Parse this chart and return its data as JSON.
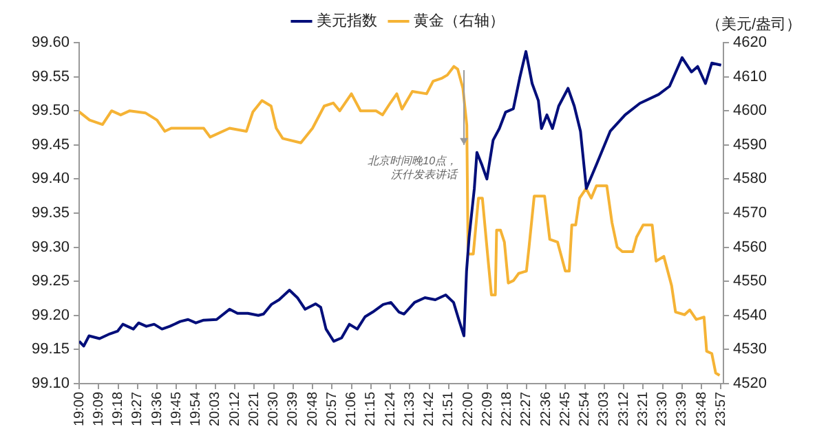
{
  "chart_data": {
    "type": "line",
    "y2label": "（美元/盎司）",
    "legend": "top",
    "grid": false,
    "marker": "none",
    "line_style": "solid",
    "xlim": [
      19,
      23.97
    ],
    "xticks": [
      {
        "value": 19,
        "label": "19:00"
      },
      {
        "value": 19.15,
        "label": "19:09"
      },
      {
        "value": 19.3,
        "label": "19:18"
      },
      {
        "value": 19.45,
        "label": "19:27"
      },
      {
        "value": 19.6,
        "label": "19:36"
      },
      {
        "value": 19.75,
        "label": "19:45"
      },
      {
        "value": 19.9,
        "label": "19:54"
      },
      {
        "value": 20.05,
        "label": "20:03"
      },
      {
        "value": 20.2,
        "label": "20:12"
      },
      {
        "value": 20.35,
        "label": "20:21"
      },
      {
        "value": 20.5,
        "label": "20:30"
      },
      {
        "value": 20.65,
        "label": "20:39"
      },
      {
        "value": 20.8,
        "label": "20:48"
      },
      {
        "value": 20.95,
        "label": "20:57"
      },
      {
        "value": 21.1,
        "label": "21:06"
      },
      {
        "value": 21.25,
        "label": "21:15"
      },
      {
        "value": 21.4,
        "label": "21:24"
      },
      {
        "value": 21.55,
        "label": "21:33"
      },
      {
        "value": 21.7,
        "label": "21:42"
      },
      {
        "value": 21.85,
        "label": "21:51"
      },
      {
        "value": 22,
        "label": "22:00"
      },
      {
        "value": 22.15,
        "label": "22:09"
      },
      {
        "value": 22.3,
        "label": "22:18"
      },
      {
        "value": 22.45,
        "label": "22:27"
      },
      {
        "value": 22.6,
        "label": "22:36"
      },
      {
        "value": 22.75,
        "label": "22:45"
      },
      {
        "value": 22.9,
        "label": "22:54"
      },
      {
        "value": 23.05,
        "label": "23:03"
      },
      {
        "value": 23.2,
        "label": "23:12"
      },
      {
        "value": 23.35,
        "label": "23:21"
      },
      {
        "value": 23.5,
        "label": "23:30"
      },
      {
        "value": 23.65,
        "label": "23:39"
      },
      {
        "value": 23.8,
        "label": "23:48"
      },
      {
        "value": 23.95,
        "label": "23:57"
      }
    ],
    "ylim": [
      99.1,
      99.6
    ],
    "yticks": [
      {
        "value": 99.1,
        "label": "99.10"
      },
      {
        "value": 99.15,
        "label": "99.15"
      },
      {
        "value": 99.2,
        "label": "99.20"
      },
      {
        "value": 99.25,
        "label": "99.25"
      },
      {
        "value": 99.3,
        "label": "99.30"
      },
      {
        "value": 99.35,
        "label": "99.35"
      },
      {
        "value": 99.4,
        "label": "99.40"
      },
      {
        "value": 99.45,
        "label": "99.45"
      },
      {
        "value": 99.5,
        "label": "99.50"
      },
      {
        "value": 99.55,
        "label": "99.55"
      },
      {
        "value": 99.6,
        "label": "99.60"
      }
    ],
    "y2lim": [
      4520,
      4620
    ],
    "y2ticks": [
      4520,
      4530,
      4540,
      4550,
      4560,
      4570,
      4580,
      4590,
      4600,
      4610,
      4620
    ],
    "annotations": [
      {
        "text": "北京时间晚10点，沃什发表讲话",
        "x": 22,
        "y": 99.45
      }
    ],
    "series": [
      {
        "name": "美元指数",
        "color": "#000e7a",
        "x": [
          19.0,
          19.035,
          19.076,
          19.157,
          19.237,
          19.297,
          19.337,
          19.418,
          19.458,
          19.518,
          19.578,
          19.639,
          19.699,
          19.779,
          19.84,
          19.9,
          19.96,
          20.06,
          20.16,
          20.221,
          20.301,
          20.382,
          20.422,
          20.482,
          20.542,
          20.622,
          20.683,
          20.743,
          20.823,
          20.863,
          20.904,
          20.964,
          21.024,
          21.084,
          21.145,
          21.205,
          21.265,
          21.345,
          21.405,
          21.466,
          21.506,
          21.587,
          21.667,
          21.747,
          21.827,
          21.888,
          21.928,
          21.968,
          21.988,
          22.008,
          22.048,
          22.068,
          22.108,
          22.145,
          22.193,
          22.241,
          22.289,
          22.349,
          22.398,
          22.446,
          22.494,
          22.542,
          22.566,
          22.608,
          22.651,
          22.699,
          22.771,
          22.819,
          22.867,
          22.912,
          22.992,
          23.096,
          23.211,
          23.325,
          23.47,
          23.554,
          23.651,
          23.723,
          23.771,
          23.831,
          23.88,
          23.952
        ],
        "values": [
          99.162,
          99.155,
          99.17,
          99.166,
          99.173,
          99.177,
          99.187,
          99.18,
          99.189,
          99.184,
          99.187,
          99.18,
          99.184,
          99.191,
          99.194,
          99.189,
          99.193,
          99.194,
          99.209,
          99.203,
          99.203,
          99.2,
          99.202,
          99.216,
          99.223,
          99.237,
          99.226,
          99.209,
          99.217,
          99.212,
          99.18,
          99.162,
          99.167,
          99.187,
          99.18,
          99.198,
          99.205,
          99.216,
          99.219,
          99.205,
          99.202,
          99.219,
          99.226,
          99.223,
          99.23,
          99.219,
          99.194,
          99.17,
          99.265,
          99.315,
          99.386,
          99.439,
          99.42,
          99.4,
          99.457,
          99.474,
          99.498,
          99.503,
          99.548,
          99.587,
          99.54,
          99.515,
          99.474,
          99.494,
          99.474,
          99.507,
          99.533,
          99.507,
          99.47,
          99.386,
          99.422,
          99.47,
          99.494,
          99.511,
          99.524,
          99.536,
          99.578,
          99.557,
          99.565,
          99.54,
          99.57,
          99.567
        ]
      },
      {
        "name": "黄金（右轴）",
        "color": "#f5b335",
        "axis": "y2",
        "x": [
          19.0,
          19.08,
          19.18,
          19.25,
          19.32,
          19.39,
          19.51,
          19.6,
          19.66,
          19.71,
          19.96,
          20.01,
          20.16,
          20.29,
          20.34,
          20.41,
          20.48,
          20.52,
          20.57,
          20.71,
          20.8,
          20.89,
          20.96,
          21.01,
          21.1,
          21.17,
          21.29,
          21.34,
          21.4,
          21.45,
          21.49,
          21.57,
          21.68,
          21.73,
          21.8,
          21.84,
          21.89,
          21.92,
          21.96,
          21.99,
          22.0,
          22.04,
          22.08,
          22.11,
          22.15,
          22.18,
          22.21,
          22.22,
          22.25,
          22.28,
          22.31,
          22.35,
          22.39,
          22.45,
          22.47,
          22.51,
          22.59,
          22.63,
          22.69,
          22.72,
          22.75,
          22.78,
          22.8,
          22.83,
          22.86,
          22.91,
          22.95,
          22.99,
          23.07,
          23.11,
          23.15,
          23.19,
          23.27,
          23.3,
          23.35,
          23.42,
          23.45,
          23.51,
          23.57,
          23.6,
          23.67,
          23.71,
          23.76,
          23.82,
          23.84,
          23.88,
          23.91,
          23.94
        ],
        "values": [
          4599.7,
          4597.3,
          4596,
          4600,
          4598.8,
          4600,
          4599.4,
          4597.3,
          4594,
          4594.9,
          4594.9,
          4592.3,
          4594.9,
          4594,
          4599.7,
          4603,
          4601.4,
          4594.9,
          4591.9,
          4590.6,
          4594.9,
          4601.4,
          4602.3,
          4600,
          4605,
          4600,
          4600,
          4598.8,
          4602.3,
          4605,
          4600.5,
          4605.7,
          4605,
          4608.7,
          4609.6,
          4610.5,
          4613,
          4612.2,
          4606.6,
          4595.8,
          4558,
          4558,
          4574.4,
          4574.4,
          4558,
          4546,
          4546,
          4565,
          4565,
          4561.5,
          4549.5,
          4550.2,
          4552.3,
          4553,
          4560,
          4575,
          4575,
          4562.3,
          4561.5,
          4557.3,
          4553,
          4553,
          4566.5,
          4566.5,
          4574.4,
          4577.2,
          4574.4,
          4578,
          4578,
          4567.2,
          4560,
          4558.7,
          4558.7,
          4563,
          4566.5,
          4566.5,
          4555.9,
          4557.3,
          4548.7,
          4541,
          4540.2,
          4541.6,
          4538.8,
          4539.5,
          4529.5,
          4528.8,
          4523.1,
          4522.4
        ]
      }
    ]
  }
}
